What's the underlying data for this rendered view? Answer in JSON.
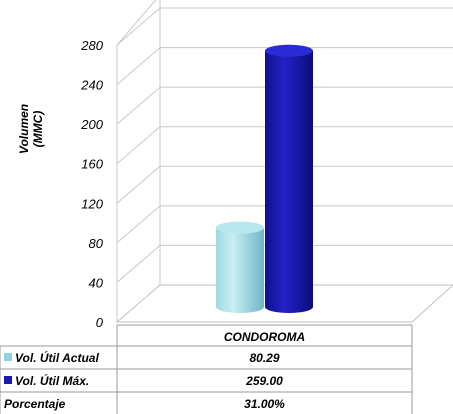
{
  "chart_data": {
    "type": "bar",
    "ylabel_line1": "Volumen",
    "ylabel_line2": "(MMC)",
    "ylim": [
      0,
      280
    ],
    "yticks": [
      0,
      40,
      80,
      120,
      160,
      200,
      240,
      280
    ],
    "grid": true,
    "categories": [
      "CONDOROMA"
    ],
    "series": [
      {
        "name": "Vol. Útil Actual",
        "values": [
          80.29
        ],
        "display": "80.29",
        "color": "#8ED3E0"
      },
      {
        "name": "Vol. Útil Máx.",
        "values": [
          259.0
        ],
        "display": "259.00",
        "color": "#1A1AAE"
      }
    ],
    "table_extra_rows": [
      {
        "name": "Porcentaje",
        "display": "31.00%"
      }
    ]
  }
}
